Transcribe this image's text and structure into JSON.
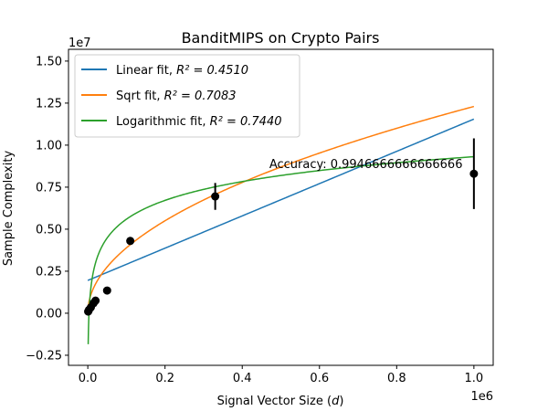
{
  "chart_data": {
    "type": "scatter",
    "title": "BanditMIPS on Crypto Pairs",
    "xlabel": "Signal Vector Size (d)",
    "xlabel_main": "Signal Vector Size (",
    "xlabel_var": "d",
    "xlabel_close": ")",
    "ylabel": "Sample Complexity",
    "x_offset_label": "1e6",
    "y_offset_label": "1e7",
    "xlim": [
      -50000,
      1050000
    ],
    "ylim": [
      -3100000,
      15700000
    ],
    "x_ticks": [
      0,
      200000,
      400000,
      600000,
      800000,
      1000000
    ],
    "x_tick_labels": [
      "0.0",
      "0.2",
      "0.4",
      "0.6",
      "0.8",
      "1.0"
    ],
    "y_ticks": [
      -2500000,
      0,
      2500000,
      5000000,
      7500000,
      10000000,
      12500000,
      15000000
    ],
    "y_tick_labels": [
      "−0.25",
      "0.00",
      "0.25",
      "0.50",
      "0.75",
      "1.00",
      "1.25",
      "1.50"
    ],
    "grid": false,
    "legend_position": "upper-left",
    "points": [
      {
        "x": 1000,
        "y": 100000,
        "err": 20000
      },
      {
        "x": 3000,
        "y": 200000,
        "err": 40000
      },
      {
        "x": 8000,
        "y": 350000,
        "err": 60000
      },
      {
        "x": 15000,
        "y": 600000,
        "err": 80000
      },
      {
        "x": 20000,
        "y": 750000,
        "err": 100000
      },
      {
        "x": 50000,
        "y": 1350000,
        "err": 120000
      },
      {
        "x": 110000,
        "y": 4300000,
        "err": 200000
      },
      {
        "x": 330000,
        "y": 6950000,
        "err": 800000
      },
      {
        "x": 1000000,
        "y": 8300000,
        "err": 2100000
      }
    ],
    "series": [
      {
        "name": "Linear fit,  R² = 0.4510",
        "label_main": "Linear fit,  ",
        "label_r2": "R² = 0.4510",
        "color": "#1f77b4",
        "model": "linear",
        "params": {
          "a": 1950000,
          "b": 9.6
        }
      },
      {
        "name": "Sqrt fit,  R² = 0.7083",
        "label_main": "Sqrt fit,  ",
        "label_r2": "R² = 0.7083",
        "color": "#ff7f0e",
        "model": "sqrt",
        "params": {
          "a": 0,
          "b": 12300
        }
      },
      {
        "name": "Logarithmic fit,  R² = 0.7440",
        "label_main": "Logarithmic fit,  ",
        "label_r2": "R² = 0.7440",
        "color": "#2ca02c",
        "model": "log",
        "params": {
          "a": -13000000,
          "b": 1615000
        }
      }
    ],
    "annotation": {
      "text": "Accuracy: 0.9946666666666666",
      "x": 470000,
      "y": 8650000
    },
    "style": {
      "point_color": "#000000",
      "axis_color": "#000000",
      "background": "#ffffff"
    }
  }
}
